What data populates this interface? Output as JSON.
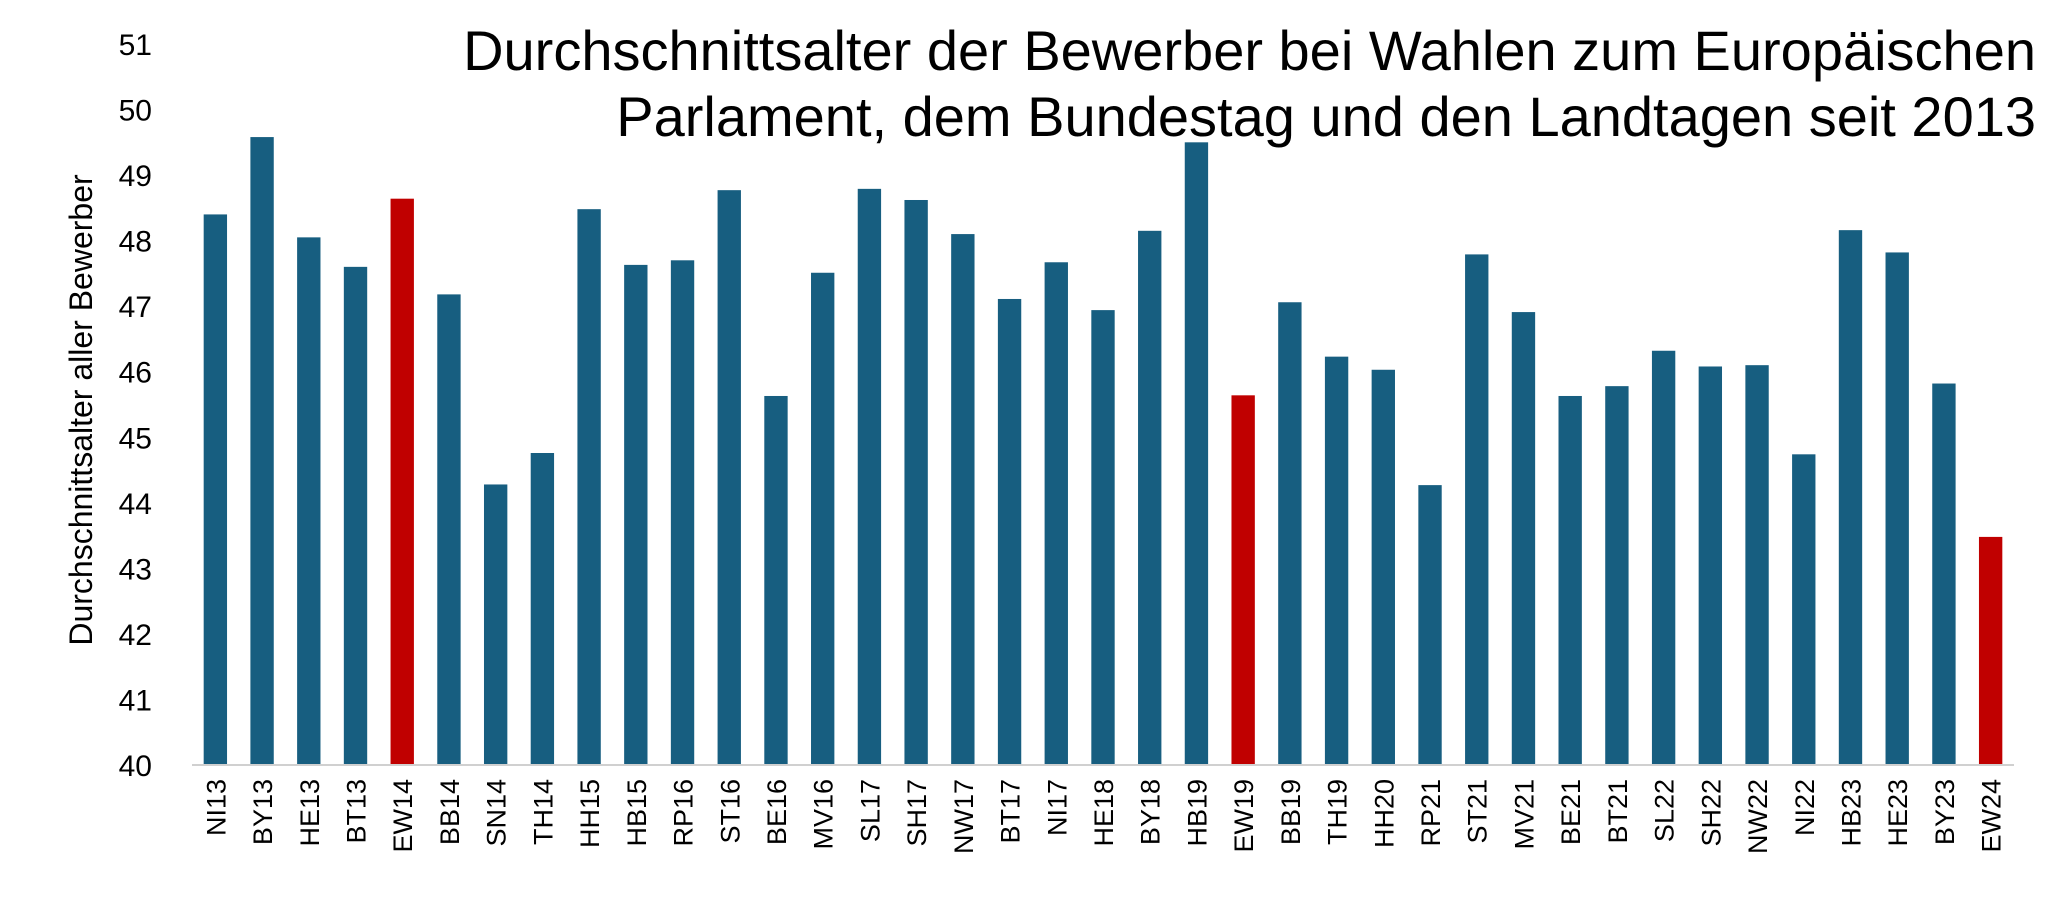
{
  "chart_data": {
    "type": "bar",
    "title_lines": [
      "Durchschnittsalter der Bewerber bei Wahlen zum Europäischen",
      "Parlament, dem Bundestag und den Landtagen seit 2013"
    ],
    "xlabel": "",
    "ylabel": "Durchschnittsalter aller Bewerber",
    "ylim": [
      40,
      51
    ],
    "yticks": [
      "40",
      "41",
      "42",
      "43",
      "44",
      "45",
      "46",
      "47",
      "48",
      "49",
      "50",
      "51"
    ],
    "grid": false,
    "legend": "none",
    "colors": {
      "default": "#175e80",
      "highlight": "#c00000"
    },
    "categories": [
      "NI13",
      "BY13",
      "HE13",
      "BT13",
      "EW14",
      "BB14",
      "SN14",
      "TH14",
      "HH15",
      "HB15",
      "RP16",
      "ST16",
      "BE16",
      "MV16",
      "SL17",
      "SH17",
      "NW17",
      "BT17",
      "NI17",
      "HE18",
      "BY18",
      "HB19",
      "EW19",
      "BB19",
      "TH19",
      "HH20",
      "RP21",
      "ST21",
      "MV21",
      "BE21",
      "BT21",
      "SL22",
      "SH22",
      "NW22",
      "NI22",
      "HB23",
      "HE23",
      "BY23",
      "EW24"
    ],
    "values": [
      48.4,
      49.58,
      48.05,
      47.6,
      48.64,
      47.18,
      44.28,
      44.76,
      48.48,
      47.63,
      47.7,
      48.77,
      45.63,
      47.51,
      48.79,
      48.62,
      48.1,
      47.11,
      47.67,
      46.94,
      48.15,
      49.5,
      45.64,
      47.06,
      46.23,
      46.03,
      44.27,
      47.79,
      46.91,
      45.63,
      45.78,
      46.32,
      46.08,
      46.1,
      44.74,
      48.16,
      47.82,
      45.82,
      43.48
    ],
    "highlighted": [
      "EW14",
      "EW19",
      "EW24"
    ]
  }
}
